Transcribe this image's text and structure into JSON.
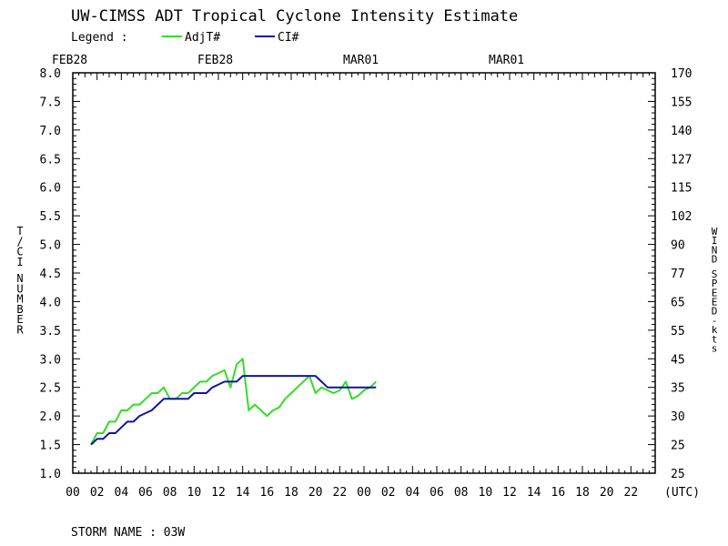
{
  "title": "UW-CIMSS ADT Tropical Cyclone Intensity Estimate",
  "legend": {
    "label": "Legend :",
    "items": [
      {
        "name": "AdjT#",
        "color": "#33dd22"
      },
      {
        "name": "CI#",
        "color": "#1111aa"
      }
    ]
  },
  "date_labels": [
    "FEB28",
    "FEB28",
    "MAR01",
    "MAR01"
  ],
  "storm_name": "STORM NAME : 03W",
  "chart_data": {
    "type": "line",
    "left_axis": {
      "label": "T/CI NUMBER",
      "ylim": [
        1.0,
        8.0
      ],
      "ticks": [
        "1.0",
        "1.5",
        "2.0",
        "2.5",
        "3.0",
        "3.5",
        "4.0",
        "4.5",
        "5.0",
        "5.5",
        "6.0",
        "6.5",
        "7.0",
        "7.5",
        "8.0"
      ]
    },
    "right_axis": {
      "label": "WIND SPEED-kts",
      "ticks": [
        "25",
        "25",
        "30",
        "35",
        "45",
        "55",
        "65",
        "77",
        "90",
        "102",
        "115",
        "127",
        "140",
        "155",
        "170"
      ]
    },
    "x_axis": {
      "unit_label": "(UTC)",
      "xlim_hours": [
        0,
        48
      ],
      "ticks": [
        "00",
        "02",
        "04",
        "06",
        "08",
        "10",
        "12",
        "14",
        "16",
        "18",
        "20",
        "22",
        "00",
        "02",
        "04",
        "06",
        "08",
        "10",
        "12",
        "14",
        "16",
        "18",
        "20",
        "22"
      ]
    },
    "series": [
      {
        "name": "AdjT#",
        "color": "#33dd22",
        "x": [
          1.5,
          2,
          2.5,
          3,
          3.5,
          4,
          4.5,
          5,
          5.5,
          6,
          6.5,
          7,
          7.5,
          8,
          8.5,
          9,
          9.5,
          10,
          10.5,
          11,
          11.5,
          12,
          12.5,
          13,
          13.5,
          14,
          14.5,
          15,
          15.5,
          16,
          16.5,
          17,
          17.5,
          18,
          18.5,
          19,
          19.5,
          20,
          20.5,
          21,
          21.5,
          22,
          22.5,
          23,
          23.5,
          24,
          24.5,
          25
        ],
        "y": [
          1.5,
          1.7,
          1.7,
          1.9,
          1.9,
          2.1,
          2.1,
          2.2,
          2.2,
          2.3,
          2.4,
          2.4,
          2.5,
          2.3,
          2.3,
          2.4,
          2.4,
          2.5,
          2.6,
          2.6,
          2.7,
          2.75,
          2.8,
          2.5,
          2.9,
          3.0,
          2.1,
          2.2,
          2.1,
          2.0,
          2.1,
          2.15,
          2.3,
          2.4,
          2.5,
          2.6,
          2.7,
          2.4,
          2.5,
          2.45,
          2.4,
          2.45,
          2.6,
          2.3,
          2.35,
          2.45,
          2.5,
          2.6
        ]
      },
      {
        "name": "CI#",
        "color": "#1111aa",
        "x": [
          1.5,
          2,
          2.5,
          3,
          3.5,
          4,
          4.5,
          5,
          5.5,
          6,
          6.5,
          7,
          7.5,
          8,
          8.5,
          9,
          9.5,
          10,
          10.5,
          11,
          11.5,
          12,
          12.5,
          13,
          13.5,
          14,
          14.5,
          15,
          15.5,
          16,
          16.5,
          17,
          17.5,
          18,
          18.5,
          19,
          19.5,
          20,
          20.5,
          21,
          21.5,
          22,
          22.5,
          23,
          23.5,
          24,
          24.5,
          25
        ],
        "y": [
          1.5,
          1.6,
          1.6,
          1.7,
          1.7,
          1.8,
          1.9,
          1.9,
          2.0,
          2.05,
          2.1,
          2.2,
          2.3,
          2.3,
          2.3,
          2.3,
          2.3,
          2.4,
          2.4,
          2.4,
          2.5,
          2.55,
          2.6,
          2.6,
          2.6,
          2.7,
          2.7,
          2.7,
          2.7,
          2.7,
          2.7,
          2.7,
          2.7,
          2.7,
          2.7,
          2.7,
          2.7,
          2.7,
          2.6,
          2.5,
          2.5,
          2.5,
          2.5,
          2.5,
          2.5,
          2.5,
          2.5,
          2.5
        ]
      }
    ]
  }
}
